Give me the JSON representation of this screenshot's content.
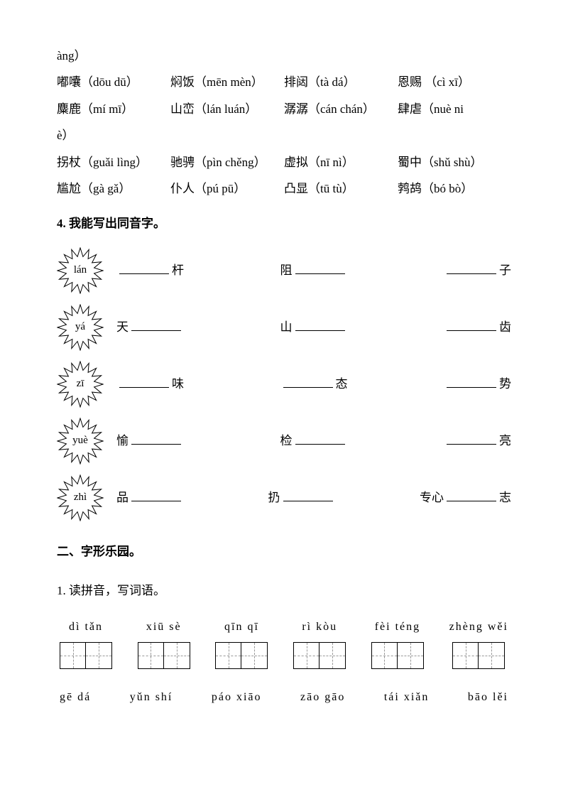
{
  "top_fragment": "àng）",
  "vocab_rows": [
    [
      {
        "word": "嘟囔",
        "pinyin": "（dōu dū）"
      },
      {
        "word": "焖饭",
        "pinyin": "（mēn mèn）"
      },
      {
        "word": "排闼",
        "pinyin": "（tà dá）"
      },
      {
        "word": "恩赐",
        "pinyin": "（cì xī）"
      }
    ],
    [
      {
        "word": "麋鹿",
        "pinyin": "（mí mī）"
      },
      {
        "word": "山峦",
        "pinyin": "（lán luán）"
      },
      {
        "word": "潺潺",
        "pinyin": "（cán chán）"
      },
      {
        "word": "肆虐",
        "pinyin": "（nuè ni"
      }
    ]
  ],
  "mid_fragment": "è）",
  "vocab_rows2": [
    [
      {
        "word": "拐杖",
        "pinyin": "（guǎi lìng）"
      },
      {
        "word": "驰骋",
        "pinyin": "（pìn chěng）"
      },
      {
        "word": "虚拟",
        "pinyin": "（nī nì）"
      },
      {
        "word": "蜀中",
        "pinyin": "（shǔ shù）"
      }
    ],
    [
      {
        "word": "尴尬",
        "pinyin": "（gà gǎ）"
      },
      {
        "word": "仆人",
        "pinyin": "（pú pū）"
      },
      {
        "word": "凸显",
        "pinyin": "（tū tù）"
      },
      {
        "word": "鹁鸪",
        "pinyin": "（bó bò）"
      }
    ]
  ],
  "section4_title": "4. 我能写出同音字。",
  "homophones": [
    {
      "py": "lán",
      "items": [
        {
          "pre": "",
          "suf": " 杆"
        },
        {
          "pre": "阻",
          "suf": ""
        },
        {
          "pre": "",
          "suf": " 子"
        }
      ]
    },
    {
      "py": "yá",
      "items": [
        {
          "pre": "天 ",
          "suf": ""
        },
        {
          "pre": "山 ",
          "suf": ""
        },
        {
          "pre": "",
          "suf": " 齿"
        }
      ]
    },
    {
      "py": "zī",
      "items": [
        {
          "pre": "",
          "suf": " 味"
        },
        {
          "pre": "",
          "suf": " 态"
        },
        {
          "pre": "",
          "suf": " 势"
        }
      ]
    },
    {
      "py": "yuè",
      "items": [
        {
          "pre": "愉 ",
          "suf": ""
        },
        {
          "pre": "检 ",
          "suf": ""
        },
        {
          "pre": "",
          "suf": "亮"
        }
      ]
    },
    {
      "py": "zhì",
      "items": [
        {
          "pre": "品 ",
          "suf": ""
        },
        {
          "pre": "扔",
          "suf": ""
        },
        {
          "pre": "专心",
          "suf": "志"
        }
      ]
    }
  ],
  "section2_title": "二、字形乐园。",
  "section2_sub": "1. 读拼音，写词语。",
  "pinyin_words": [
    {
      "py": "dì  tǎn"
    },
    {
      "py": "xiū  sè"
    },
    {
      "py": "qīn  qī"
    },
    {
      "py": "rì  kòu"
    },
    {
      "py": "fèi téng"
    },
    {
      "py": "zhèng wěi"
    }
  ],
  "pinyin_row2": [
    "gē  dá",
    "yǔn  shí",
    "páo  xiāo",
    "zāo  gāo",
    "tái xiǎn",
    "bāo  lěi"
  ]
}
